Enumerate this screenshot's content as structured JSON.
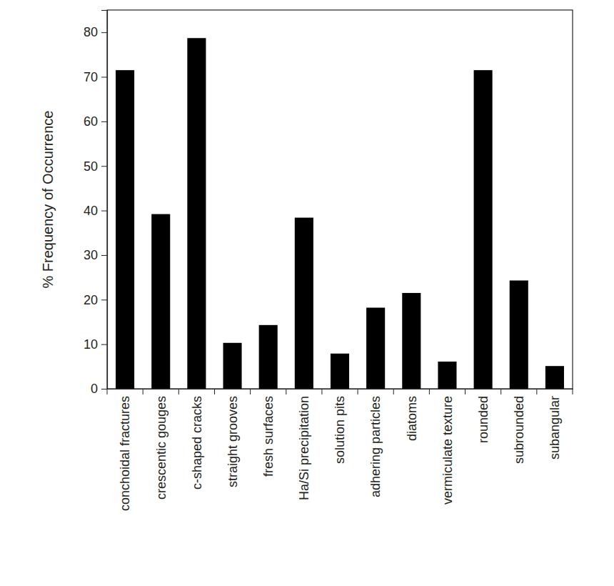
{
  "chart_data": {
    "type": "bar",
    "y_label": "% Frequency of Occurrence",
    "categories": [
      "conchoidal fractures",
      "crescentic gouges",
      "c-shaped cracks",
      "straight grooves",
      "fresh surfaces",
      "Ha/Si precipitation",
      "solution pits",
      "adhering particles",
      "diatoms",
      "vermiculate texture",
      "rounded",
      "subrounded",
      "subangular"
    ],
    "values": [
      71.5,
      39.2,
      78.7,
      10.3,
      14.3,
      38.4,
      7.9,
      18.2,
      21.5,
      6.1,
      71.5,
      24.3,
      5.1
    ],
    "color": "#000000",
    "ylim": [
      0,
      85
    ],
    "yticks": [
      0,
      10,
      20,
      30,
      40,
      50,
      60,
      70,
      80
    ],
    "grid": false
  }
}
